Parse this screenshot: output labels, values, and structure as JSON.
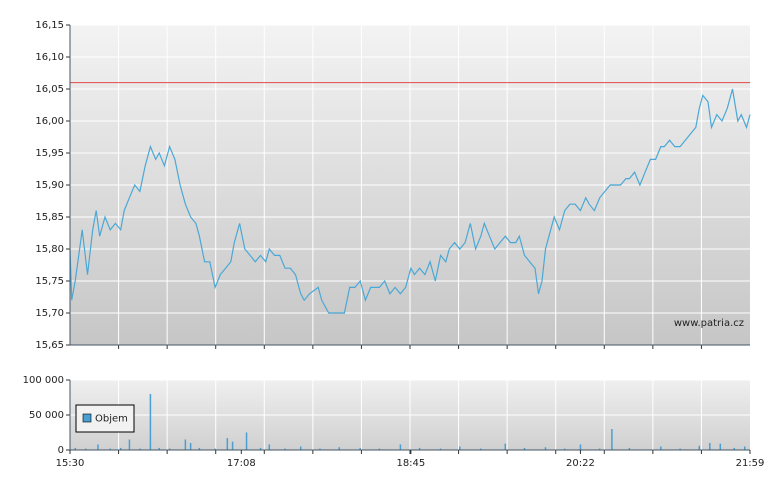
{
  "chart_data": [
    {
      "type": "line",
      "color": "#4aa8d6",
      "grid": true,
      "annotation": "www.patria.cz",
      "reference_line": {
        "value": 16.06,
        "color": "#e04848"
      },
      "xlim": [
        930,
        1319
      ],
      "ylim": [
        15.65,
        16.15
      ],
      "yticks": [
        {
          "value": 15.65,
          "label": "15,65"
        },
        {
          "value": 15.7,
          "label": "15,70"
        },
        {
          "value": 15.75,
          "label": "15,75"
        },
        {
          "value": 15.8,
          "label": "15,80"
        },
        {
          "value": 15.85,
          "label": "15,85"
        },
        {
          "value": 15.9,
          "label": "15,90"
        },
        {
          "value": 15.95,
          "label": "15,95"
        },
        {
          "value": 16.0,
          "label": "16,00"
        },
        {
          "value": 16.05,
          "label": "16,05"
        },
        {
          "value": 16.1,
          "label": "16,10"
        },
        {
          "value": 16.15,
          "label": "16,15"
        }
      ],
      "x": [
        930,
        931,
        933,
        936,
        937,
        940,
        943,
        945,
        947,
        950,
        953,
        956,
        959,
        961,
        964,
        967,
        970,
        973,
        976,
        979,
        981,
        984,
        987,
        990,
        993,
        996,
        999,
        1002,
        1004,
        1007,
        1010,
        1013,
        1016,
        1019,
        1022,
        1024,
        1027,
        1030,
        1033,
        1036,
        1039,
        1042,
        1044,
        1047,
        1050,
        1053,
        1056,
        1059,
        1062,
        1064,
        1067,
        1072,
        1074,
        1078,
        1082,
        1087,
        1090,
        1093,
        1096,
        1099,
        1102,
        1104,
        1107,
        1110,
        1113,
        1116,
        1119,
        1122,
        1125,
        1127,
        1130,
        1133,
        1136,
        1139,
        1142,
        1145,
        1147,
        1150,
        1153,
        1156,
        1159,
        1162,
        1165,
        1167,
        1170,
        1173,
        1176,
        1179,
        1182,
        1185,
        1187,
        1190,
        1193,
        1196,
        1198,
        1200,
        1202,
        1205,
        1207,
        1210,
        1213,
        1216,
        1219,
        1222,
        1225,
        1227,
        1230,
        1233,
        1236,
        1239,
        1242,
        1245,
        1248,
        1250,
        1253,
        1256,
        1259,
        1262,
        1265,
        1268,
        1270,
        1273,
        1276,
        1279,
        1282,
        1285,
        1288,
        1290,
        1292,
        1295,
        1297,
        1300,
        1303,
        1306,
        1309,
        1312,
        1314,
        1317,
        1319
      ],
      "values": [
        15.8,
        15.72,
        15.75,
        15.81,
        15.83,
        15.76,
        15.83,
        15.86,
        15.82,
        15.85,
        15.83,
        15.84,
        15.83,
        15.86,
        15.88,
        15.9,
        15.89,
        15.93,
        15.96,
        15.94,
        15.95,
        15.93,
        15.96,
        15.94,
        15.9,
        15.87,
        15.85,
        15.84,
        15.82,
        15.78,
        15.78,
        15.74,
        15.76,
        15.77,
        15.78,
        15.81,
        15.84,
        15.8,
        15.79,
        15.78,
        15.79,
        15.78,
        15.8,
        15.79,
        15.79,
        15.77,
        15.77,
        15.76,
        15.73,
        15.72,
        15.73,
        15.74,
        15.72,
        15.7,
        15.7,
        15.7,
        15.74,
        15.74,
        15.75,
        15.72,
        15.74,
        15.74,
        15.74,
        15.75,
        15.73,
        15.74,
        15.73,
        15.74,
        15.77,
        15.76,
        15.77,
        15.76,
        15.78,
        15.75,
        15.79,
        15.78,
        15.8,
        15.81,
        15.8,
        15.81,
        15.84,
        15.8,
        15.82,
        15.84,
        15.82,
        15.8,
        15.81,
        15.82,
        15.81,
        15.81,
        15.82,
        15.79,
        15.78,
        15.77,
        15.73,
        15.75,
        15.8,
        15.83,
        15.85,
        15.83,
        15.86,
        15.87,
        15.87,
        15.86,
        15.88,
        15.87,
        15.86,
        15.88,
        15.89,
        15.9,
        15.9,
        15.9,
        15.91,
        15.91,
        15.92,
        15.9,
        15.92,
        15.94,
        15.94,
        15.96,
        15.96,
        15.97,
        15.96,
        15.96,
        15.97,
        15.98,
        15.99,
        16.02,
        16.04,
        16.03,
        15.99,
        16.01,
        16.0,
        16.02,
        16.05,
        16.0,
        16.01,
        15.99,
        16.01
      ]
    },
    {
      "type": "bar",
      "grid": true,
      "legend": "lower left",
      "xlim": [
        930,
        1319
      ],
      "xticks": [
        {
          "value": 930,
          "label": "15:30"
        },
        {
          "value": 1028,
          "label": "17:08"
        },
        {
          "value": 1125,
          "label": "18:45"
        },
        {
          "value": 1222,
          "label": "20:22"
        },
        {
          "value": 1319,
          "label": "21:59"
        }
      ],
      "ylim": [
        0,
        100000
      ],
      "yticks": [
        0,
        {
          "value": 50000,
          "label": "50 000"
        },
        {
          "value": 100000,
          "label": "100 000"
        }
      ],
      "x": [
        933,
        939,
        946,
        953,
        959,
        964,
        970,
        976,
        981,
        987,
        996,
        999,
        1004,
        1013,
        1020,
        1023,
        1031,
        1039,
        1044,
        1053,
        1062,
        1073,
        1084,
        1096,
        1107,
        1119,
        1130,
        1142,
        1153,
        1165,
        1179,
        1190,
        1202,
        1213,
        1222,
        1233,
        1240,
        1250,
        1268,
        1279,
        1290,
        1296,
        1302,
        1310,
        1316
      ],
      "series": [
        {
          "name": "Objem",
          "color": "#4a9fd2",
          "values": [
            3000,
            2000,
            8000,
            2000,
            3000,
            15000,
            2000,
            80000,
            3000,
            2000,
            15000,
            10000,
            3000,
            2000,
            17000,
            12000,
            25000,
            3000,
            8000,
            2000,
            5000,
            2000,
            4000,
            3000,
            2000,
            8000,
            3000,
            2000,
            5000,
            2000,
            9000,
            3000,
            4000,
            2000,
            8000,
            2000,
            30000,
            3000,
            5000,
            2000,
            6000,
            10000,
            9000,
            3000,
            5000
          ]
        }
      ]
    }
  ]
}
